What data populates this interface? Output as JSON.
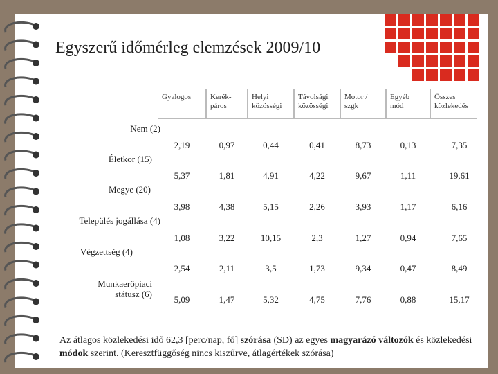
{
  "title": "Egyszerű időmérleg elemzések 2009/10",
  "table": {
    "headers": [
      [
        "Gyalogos"
      ],
      [
        "Kerék-",
        "páros"
      ],
      [
        "Helyi",
        "közösségi"
      ],
      [
        "Távolsági",
        "közösségi"
      ],
      [
        "Motor /",
        "szgk"
      ],
      [
        "Egyéb",
        "mód"
      ],
      [
        "Összes",
        "közlekedés"
      ]
    ],
    "row_labels": [
      [
        "Nem (2)"
      ],
      [
        "Életkor (15)"
      ],
      [
        "Megye (20)"
      ],
      [
        "Település jogállása (4)"
      ],
      [
        "Végzettség (4)"
      ],
      [
        "Munkaerőpiaci",
        "státusz (6)"
      ]
    ],
    "rows": [
      [
        "2,19",
        "0,97",
        "0,44",
        "0,41",
        "8,73",
        "0,13",
        "7,35"
      ],
      [
        "5,37",
        "1,81",
        "4,91",
        "4,22",
        "9,67",
        "1,11",
        "19,61"
      ],
      [
        "3,98",
        "4,38",
        "5,15",
        "2,26",
        "3,93",
        "1,17",
        "6,16"
      ],
      [
        "1,08",
        "3,22",
        "10,15",
        "2,3",
        "1,27",
        "0,94",
        "7,65"
      ],
      [
        "2,54",
        "2,11",
        "3,5",
        "1,73",
        "9,34",
        "0,47",
        "8,49"
      ],
      [
        "5,09",
        "1,47",
        "5,32",
        "4,75",
        "7,76",
        "0,88",
        "15,17"
      ]
    ]
  },
  "footer": [
    {
      "text": "Az átlagos közlekedési idő 62,3 [perc/nap, fő] ",
      "bold": false
    },
    {
      "text": "szórása",
      "bold": true
    },
    {
      "text": " (SD) az egyes ",
      "bold": false
    },
    {
      "text": "magyarázó változók",
      "bold": true
    },
    {
      "text": " és közlekedési ",
      "bold": false
    },
    {
      "text": "módok",
      "bold": true
    },
    {
      "text": " szerint. (Keresztfüggőség nincs kiszűrve, átlagértékek szórása)",
      "bold": false
    }
  ]
}
